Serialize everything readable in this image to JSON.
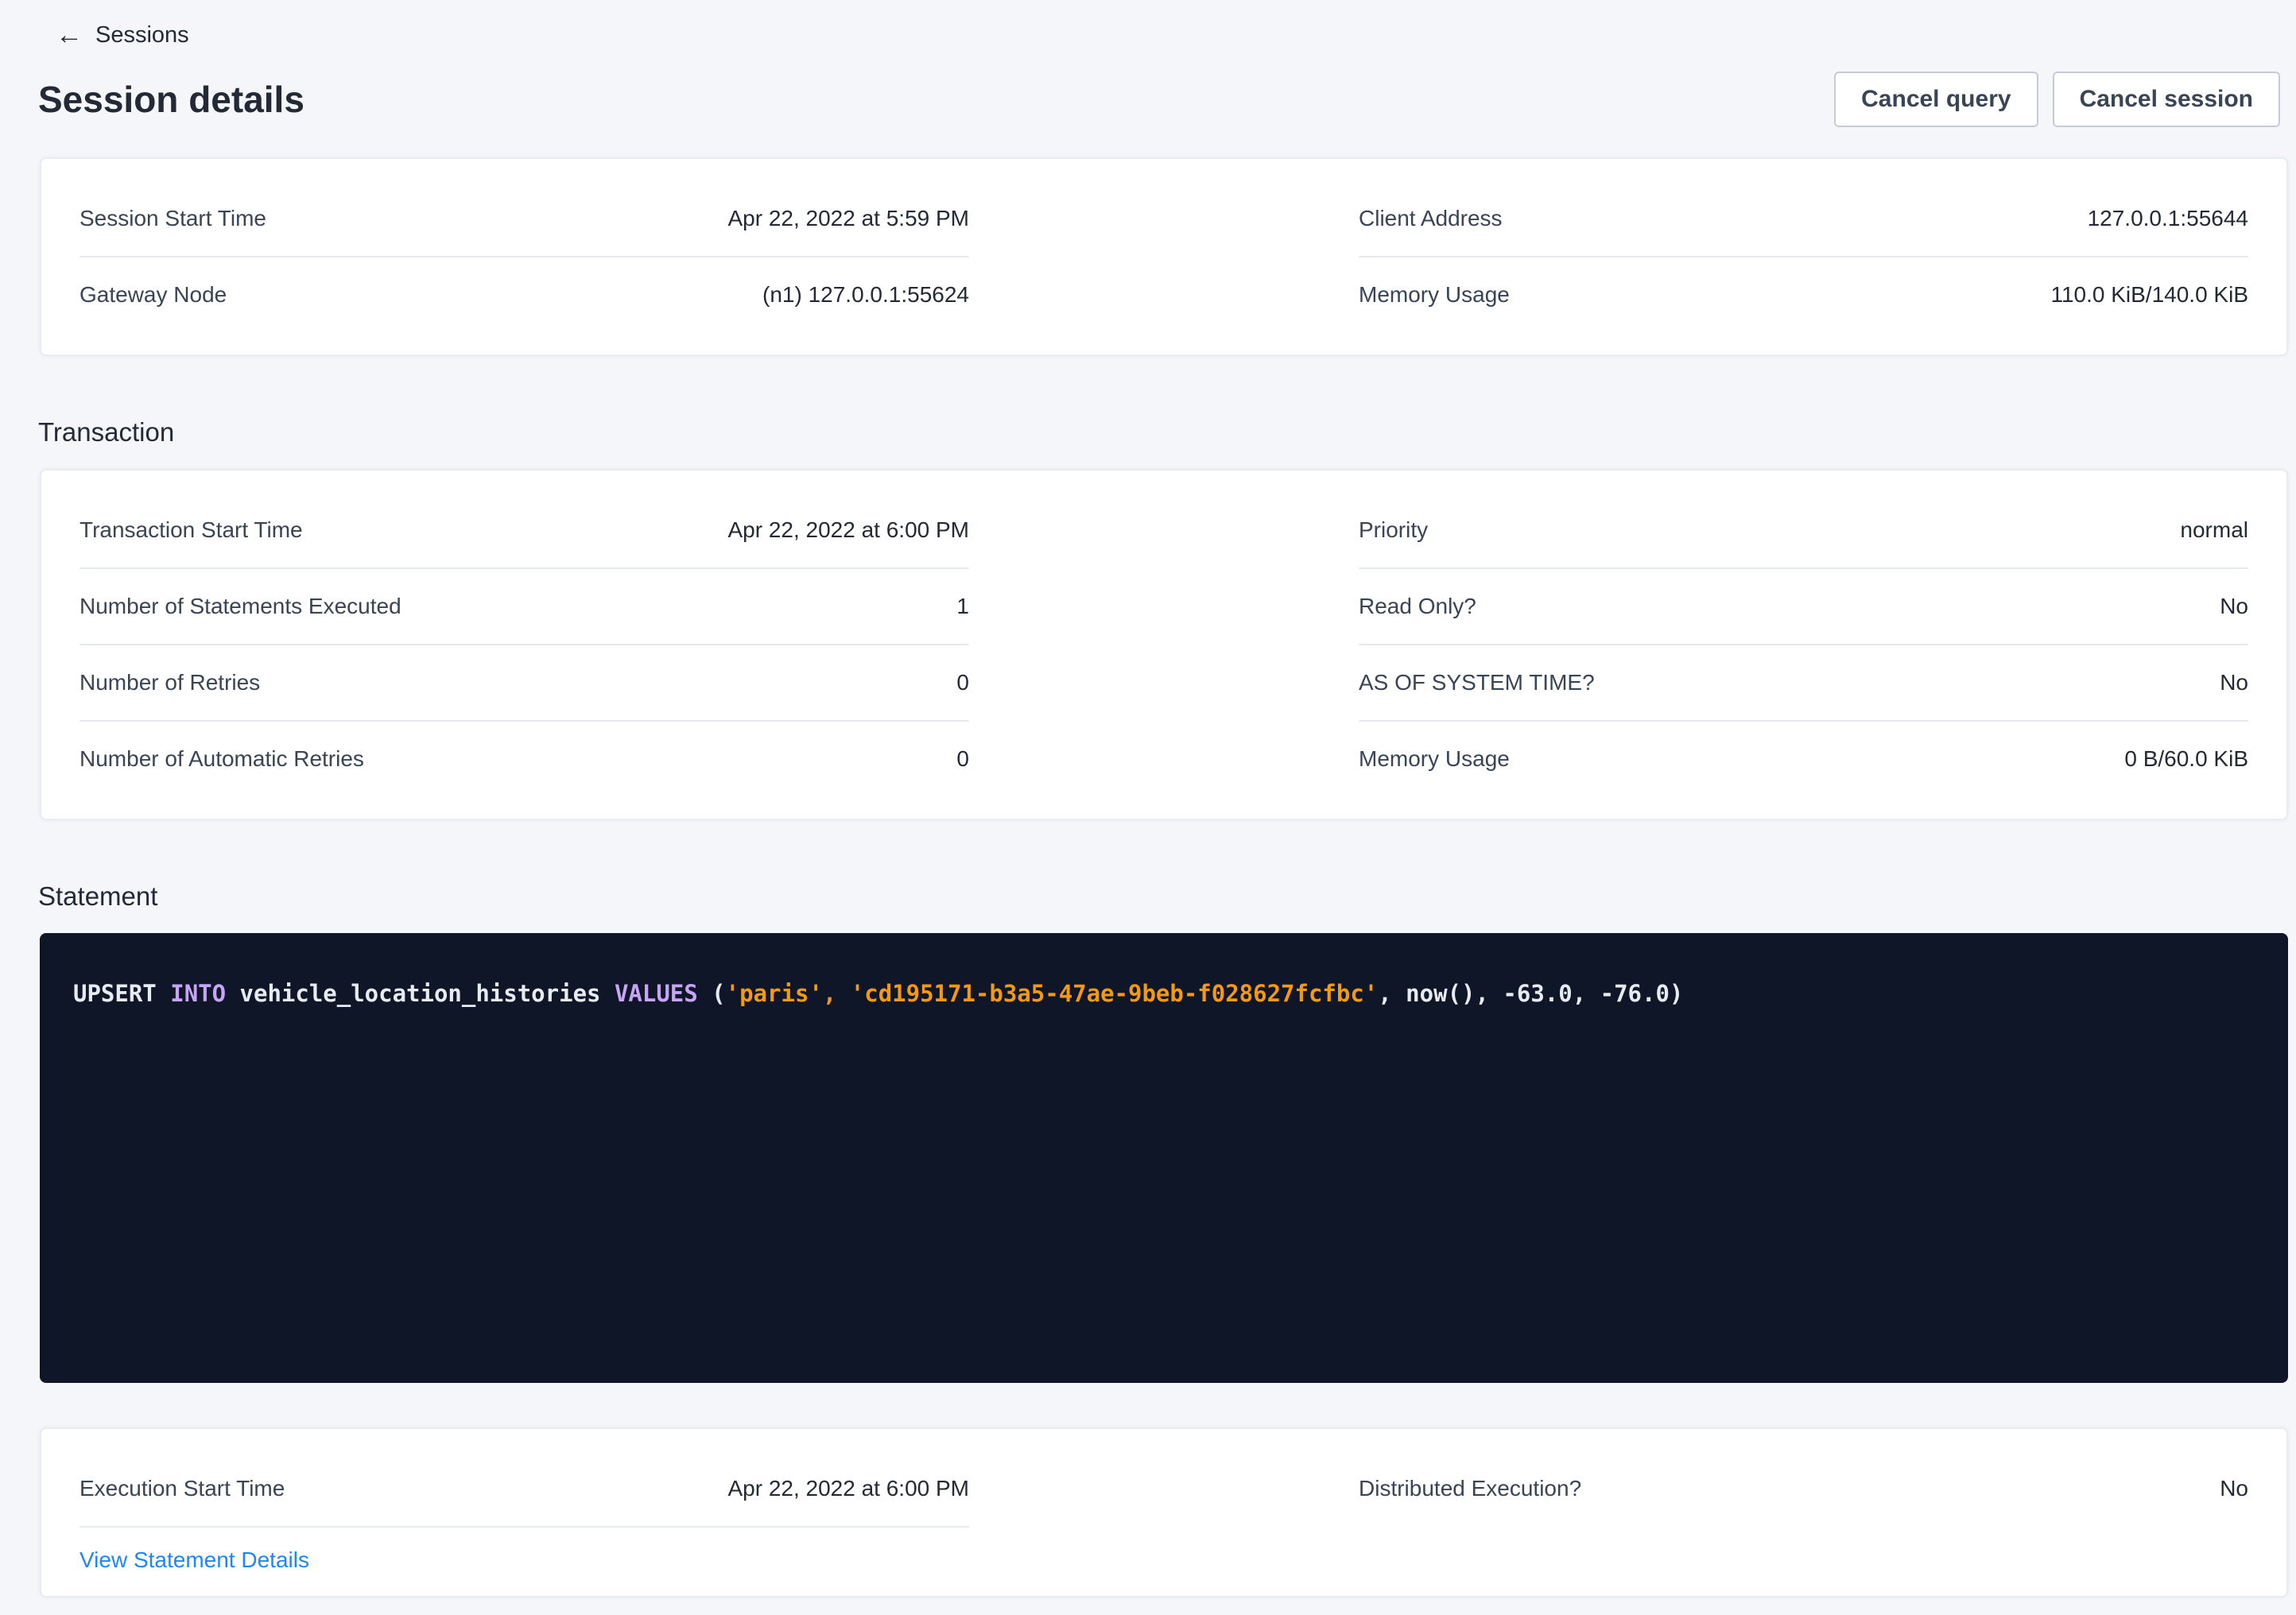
{
  "header": {
    "back_arrow": "←",
    "breadcrumb": "Sessions",
    "title": "Session details",
    "cancel_query": "Cancel query",
    "cancel_session": "Cancel session"
  },
  "session_card": {
    "left": [
      {
        "label": "Session Start Time",
        "value": "Apr 22, 2022 at 5:59 PM"
      },
      {
        "label": "Gateway Node",
        "value": "(n1) 127.0.0.1:55624"
      }
    ],
    "right": [
      {
        "label": "Client Address",
        "value": "127.0.0.1:55644"
      },
      {
        "label": "Memory Usage",
        "value": "110.0 KiB/140.0 KiB"
      }
    ]
  },
  "transaction": {
    "heading": "Transaction",
    "left": [
      {
        "label": "Transaction Start Time",
        "value": "Apr 22, 2022 at 6:00 PM"
      },
      {
        "label": "Number of Statements Executed",
        "value": "1"
      },
      {
        "label": "Number of Retries",
        "value": "0"
      },
      {
        "label": "Number of Automatic Retries",
        "value": "0"
      }
    ],
    "right": [
      {
        "label": "Priority",
        "value": "normal"
      },
      {
        "label": "Read Only?",
        "value": "No"
      },
      {
        "label": "AS OF SYSTEM TIME?",
        "value": "No"
      },
      {
        "label": "Memory Usage",
        "value": "0 B/60.0 KiB"
      }
    ]
  },
  "statement": {
    "heading": "Statement",
    "tokens": [
      {
        "text": "UPSERT",
        "type": "plain"
      },
      {
        "text": " ",
        "type": "plain"
      },
      {
        "text": "INTO",
        "type": "keyword"
      },
      {
        "text": " vehicle_location_histories ",
        "type": "plain"
      },
      {
        "text": "VALUES",
        "type": "keyword"
      },
      {
        "text": " (",
        "type": "plain"
      },
      {
        "text": "'paris',",
        "type": "string"
      },
      {
        "text": " ",
        "type": "plain"
      },
      {
        "text": "'cd195171-b3a5-47ae-9beb-f028627fcfbc'",
        "type": "string"
      },
      {
        "text": ", now(), -63.0, -76.0)",
        "type": "plain"
      }
    ]
  },
  "execution_card": {
    "left": [
      {
        "label": "Execution Start Time",
        "value": "Apr 22, 2022 at 6:00 PM"
      }
    ],
    "link": "View Statement Details",
    "right": [
      {
        "label": "Distributed Execution?",
        "value": "No"
      }
    ]
  },
  "colors": {
    "page_background": "#f4f6fa",
    "card_border": "#e7ebf3",
    "text_primary": "#242a35",
    "text_label": "#394455",
    "link_blue": "#1f86f9",
    "code_background": "#0e1628",
    "sql_keyword": "#c8a4f4",
    "sql_string": "#f49a10",
    "sql_plain": "#e7ecf3"
  }
}
